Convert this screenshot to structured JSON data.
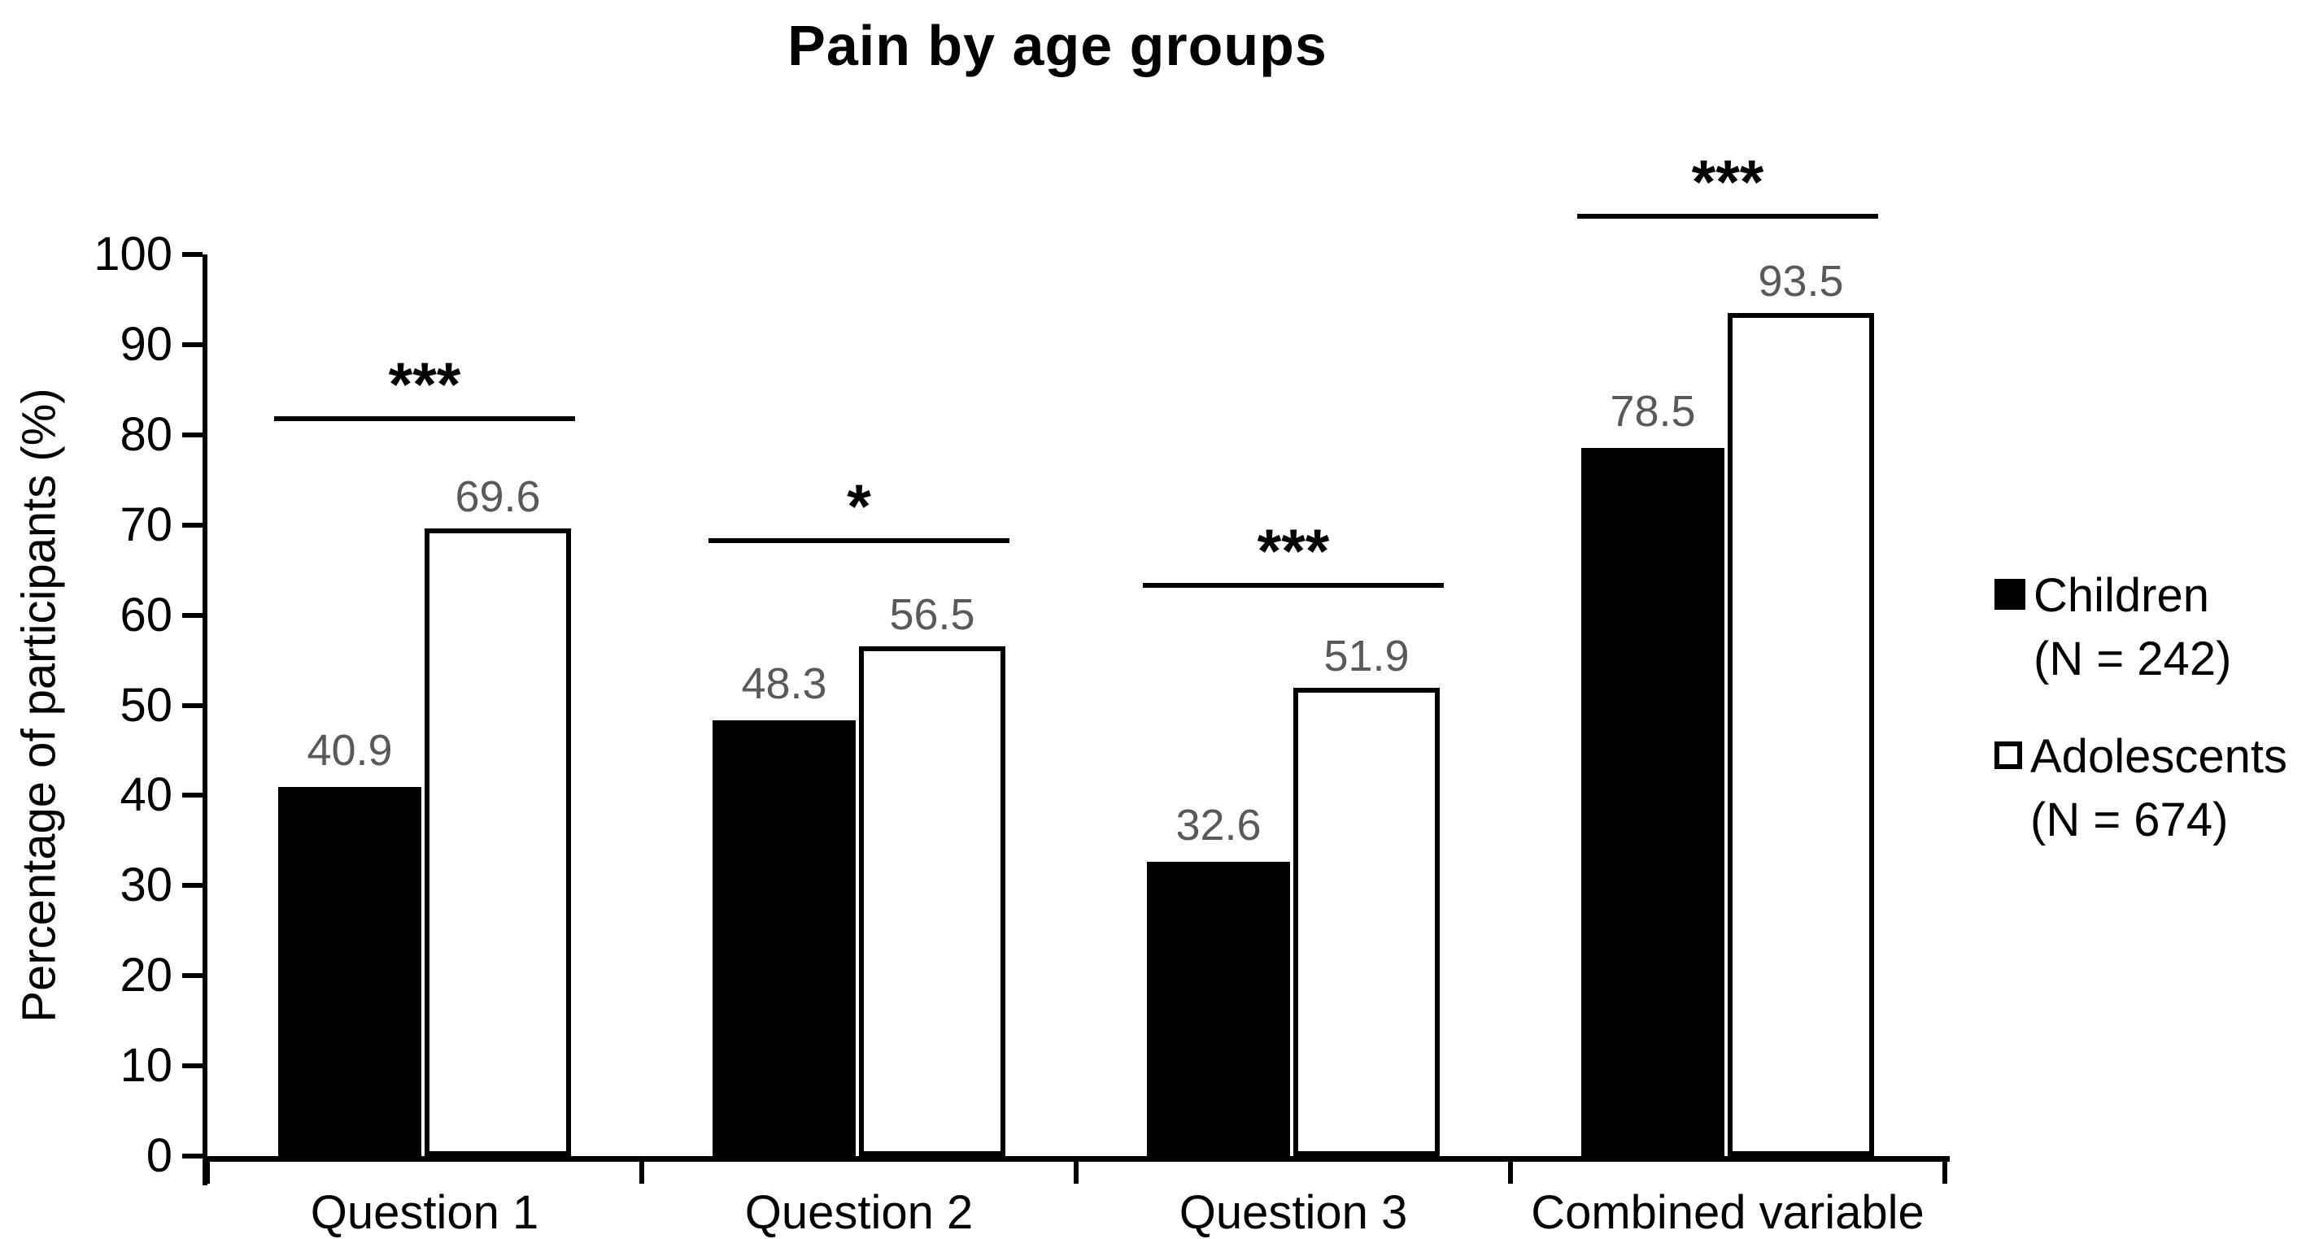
{
  "chart_data": {
    "type": "bar",
    "title": "Pain by age groups",
    "ylabel": "Percentage of participants (%)",
    "xlabel": "",
    "categories": [
      "Question 1",
      "Question 2",
      "Question 3",
      "Combined variable"
    ],
    "series": [
      {
        "name": "Children",
        "n_label": "(N = 242)",
        "style": "filled",
        "fill": "#000000",
        "border": "#000000",
        "values": [
          40.9,
          48.3,
          32.6,
          78.5
        ]
      },
      {
        "name": "Adolescents",
        "n_label": "(N = 674)",
        "style": "open",
        "fill": "#ffffff",
        "border": "#000000",
        "values": [
          69.6,
          56.5,
          51.9,
          93.5
        ]
      }
    ],
    "significance": [
      {
        "category": "Question 1",
        "stars": "***",
        "line_y": 81.5
      },
      {
        "category": "Question 2",
        "stars": "*",
        "line_y": 68
      },
      {
        "category": "Question 3",
        "stars": "***",
        "line_y": 63
      },
      {
        "category": "Combined variable",
        "stars": "***",
        "line_y": 104
      }
    ],
    "ylim": [
      0,
      100
    ],
    "ytick_step": 10,
    "grid": false,
    "legend_position": "right",
    "value_label_color": "#595959",
    "axis_color": "#000000",
    "title_color": "#000000"
  }
}
